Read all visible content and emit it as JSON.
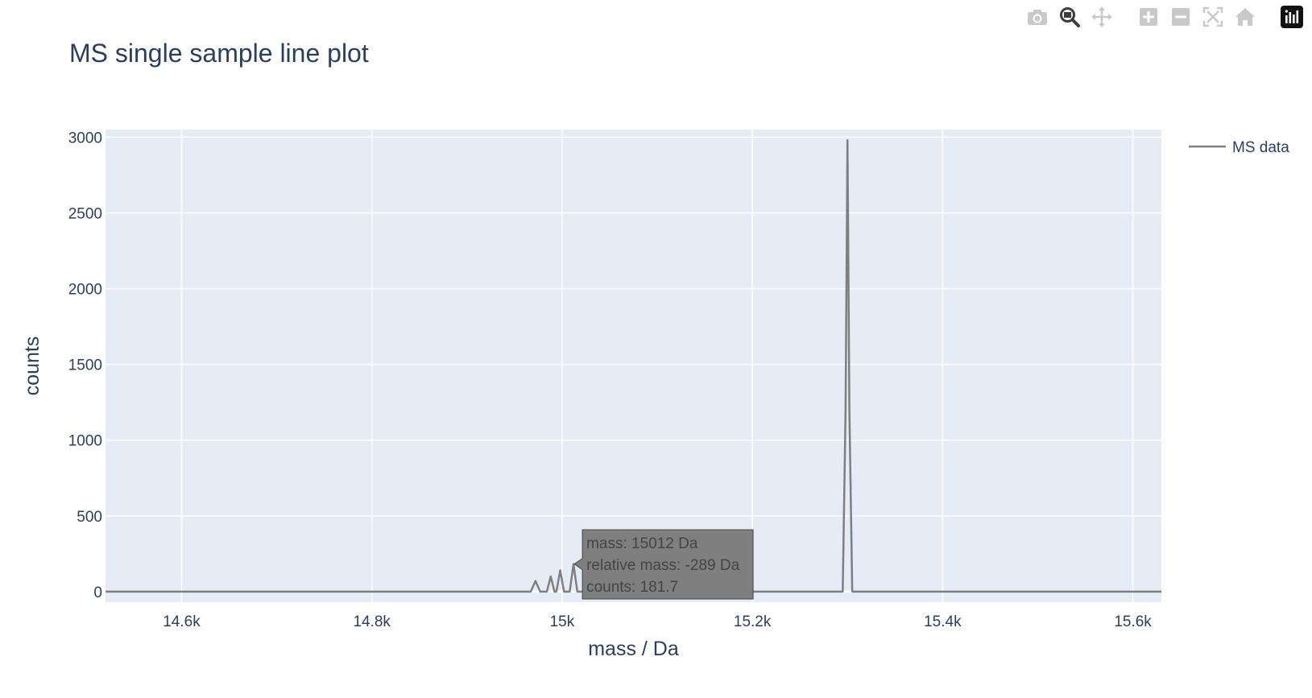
{
  "modebar": {
    "buttons": [
      {
        "name": "camera-icon",
        "title": "Download plot as a png"
      },
      {
        "name": "zoom-icon",
        "title": "Zoom"
      },
      {
        "name": "pan-icon",
        "title": "Pan"
      },
      {
        "name": "zoom-in-icon",
        "title": "Zoom in"
      },
      {
        "name": "zoom-out-icon",
        "title": "Zoom out"
      },
      {
        "name": "autoscale-icon",
        "title": "Autoscale"
      },
      {
        "name": "home-icon",
        "title": "Reset axes"
      },
      {
        "name": "plotly-logo-icon",
        "title": "Produced with Plotly"
      }
    ]
  },
  "chart_data": {
    "type": "line",
    "title": "MS single sample line plot",
    "xlabel": "mass / Da",
    "ylabel": "counts",
    "xlim": [
      14520,
      15630
    ],
    "ylim": [
      -70,
      3050
    ],
    "x_ticks": [
      14600,
      14800,
      15000,
      15200,
      15400,
      15600
    ],
    "x_tick_labels": [
      "14.6k",
      "14.8k",
      "15k",
      "15.2k",
      "15.4k",
      "15.6k"
    ],
    "y_ticks": [
      0,
      500,
      1000,
      1500,
      2000,
      2500,
      3000
    ],
    "y_tick_labels": [
      "0",
      "500",
      "1000",
      "1500",
      "2000",
      "2500",
      "3000"
    ],
    "grid": true,
    "legend_position": "top-right",
    "colors": {
      "line": "#7f7f7f",
      "plot_bg": "#e5ecf6",
      "grid": "#ffffff",
      "hover_bg": "#7f7f7f",
      "hover_border": "#444444"
    },
    "series": [
      {
        "name": "MS data",
        "x": [
          14520,
          14967,
          14972,
          14977,
          14984,
          14988,
          14992,
          14994,
          14998,
          15002,
          15008,
          15012,
          15016,
          15295,
          15298,
          15300,
          15302,
          15305,
          15630
        ],
        "y": [
          0,
          0,
          70,
          0,
          0,
          100,
          0,
          0,
          140,
          0,
          0,
          181.7,
          0,
          0,
          1200,
          2980,
          1200,
          0,
          0
        ]
      }
    ],
    "hover": {
      "x": 15012,
      "y": 181.7,
      "lines": [
        "mass: 15012 Da",
        "relative mass: -289 Da",
        "counts: 181.7"
      ]
    }
  }
}
